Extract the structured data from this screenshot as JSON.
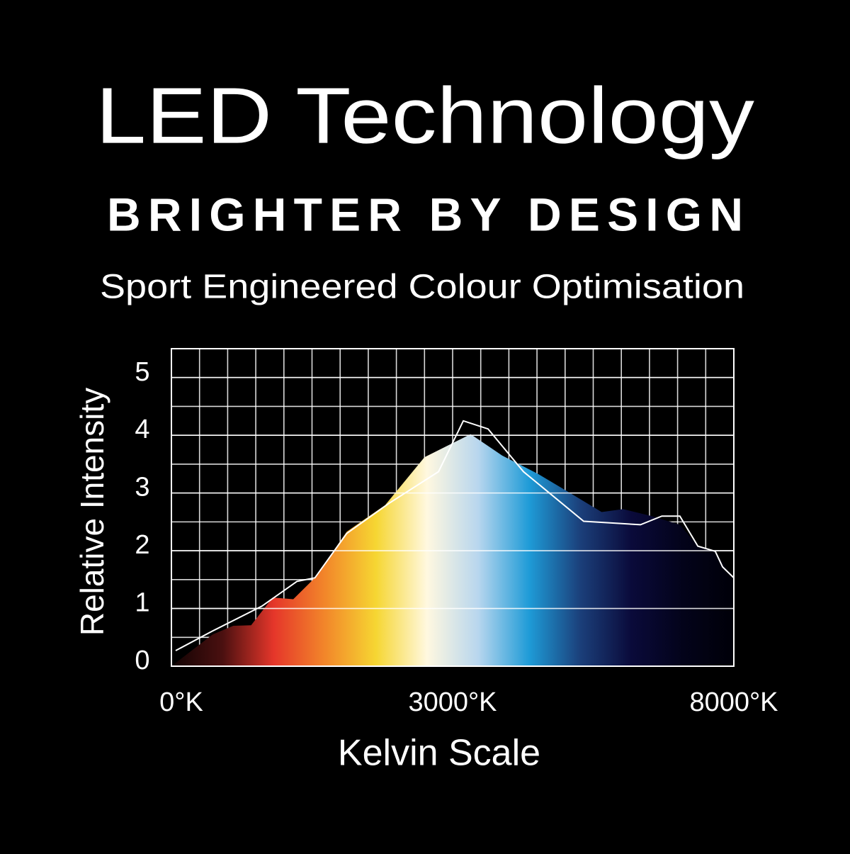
{
  "chart_data": {
    "type": "area",
    "title": "LED Technology",
    "subtitle": "BRIGHTER BY DESIGN",
    "tagline": "Sport Engineered Colour Optimisation",
    "x_label": "Kelvin Scale",
    "y_label": "Relative Intensity",
    "xlim": [
      0,
      8000
    ],
    "xticks": [
      {
        "value": 0,
        "label": "0°K"
      },
      {
        "value": 3000,
        "label": "3000°K"
      },
      {
        "value": 8000,
        "label": "8000°K"
      }
    ],
    "ylim": [
      0,
      5.5
    ],
    "yticks": [
      0,
      1,
      2,
      3,
      4,
      5
    ],
    "grid": true,
    "series": [
      {
        "colors": [
          "#120303",
          "#4a1010",
          "#e5362a",
          "#f2862a",
          "#f6d632",
          "#fff8e0",
          "#b8d6ee",
          "#1e9bd7",
          "#1b3f7a",
          "#0a0a3a",
          "#03031a",
          "#000008"
        ],
        "x": [
          0,
          440,
          660,
          850,
          1080,
          1300,
          1530,
          1870,
          2280,
          2700,
          3320,
          3880,
          4520,
          5020,
          5650,
          6030,
          6540,
          7040,
          7360,
          7670,
          8000
        ],
        "values": [
          0,
          0.55,
          0.7,
          0.71,
          1.19,
          1.16,
          1.53,
          2.33,
          2.79,
          3.62,
          4.02,
          3.65,
          3.33,
          3.04,
          2.67,
          2.72,
          2.6,
          2.45,
          2.08,
          1.99,
          1.53
        ]
      },
      {
        "color": "#ffffff",
        "x": [
          45,
          440,
          965,
          1340,
          1530,
          1870,
          2320,
          2850,
          3190,
          3630,
          4260,
          5330,
          6340,
          6720,
          7040,
          7360,
          7670,
          7800,
          8000
        ],
        "values": [
          0.27,
          0.61,
          1.04,
          1.47,
          1.53,
          2.3,
          2.82,
          3.37,
          4.25,
          4.11,
          3.37,
          2.51,
          2.45,
          2.6,
          2.6,
          2.08,
          1.99,
          1.72,
          1.53
        ]
      }
    ]
  }
}
